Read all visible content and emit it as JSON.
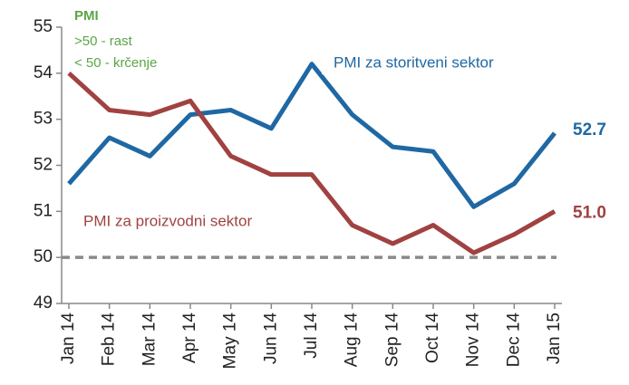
{
  "chart_data": {
    "type": "line",
    "categories": [
      "Jan 14",
      "Feb 14",
      "Mar 14",
      "Apr 14",
      "May 14",
      "Jun 14",
      "Jul 14",
      "Aug 14",
      "Sep 14",
      "Oct 14",
      "Nov 14",
      "Dec 14",
      "Jan 15"
    ],
    "series": [
      {
        "name": "PMI za storitveni sektor",
        "color": "#1f68a3",
        "values": [
          51.6,
          52.6,
          52.2,
          53.1,
          53.2,
          52.8,
          54.2,
          53.1,
          52.4,
          52.3,
          51.1,
          51.6,
          52.7
        ],
        "value_labels": [
          null,
          null,
          null,
          null,
          null,
          null,
          null,
          null,
          null,
          null,
          null,
          null,
          "52.7"
        ]
      },
      {
        "name": "PMI za proizvodni sektor",
        "color": "#a04241",
        "values": [
          54.0,
          53.2,
          53.1,
          53.4,
          52.2,
          51.8,
          51.8,
          50.7,
          50.3,
          50.7,
          50.1,
          50.5,
          51.0
        ],
        "value_labels": [
          null,
          null,
          null,
          null,
          null,
          null,
          null,
          null,
          null,
          null,
          null,
          null,
          "51.0"
        ]
      }
    ],
    "annotations": [
      "PMI",
      ">50 - rast",
      "< 50 - krčenje"
    ],
    "reference_line": 50,
    "ylim": [
      49,
      55
    ],
    "yticks": [
      49,
      50,
      51,
      52,
      53,
      54,
      55
    ]
  }
}
